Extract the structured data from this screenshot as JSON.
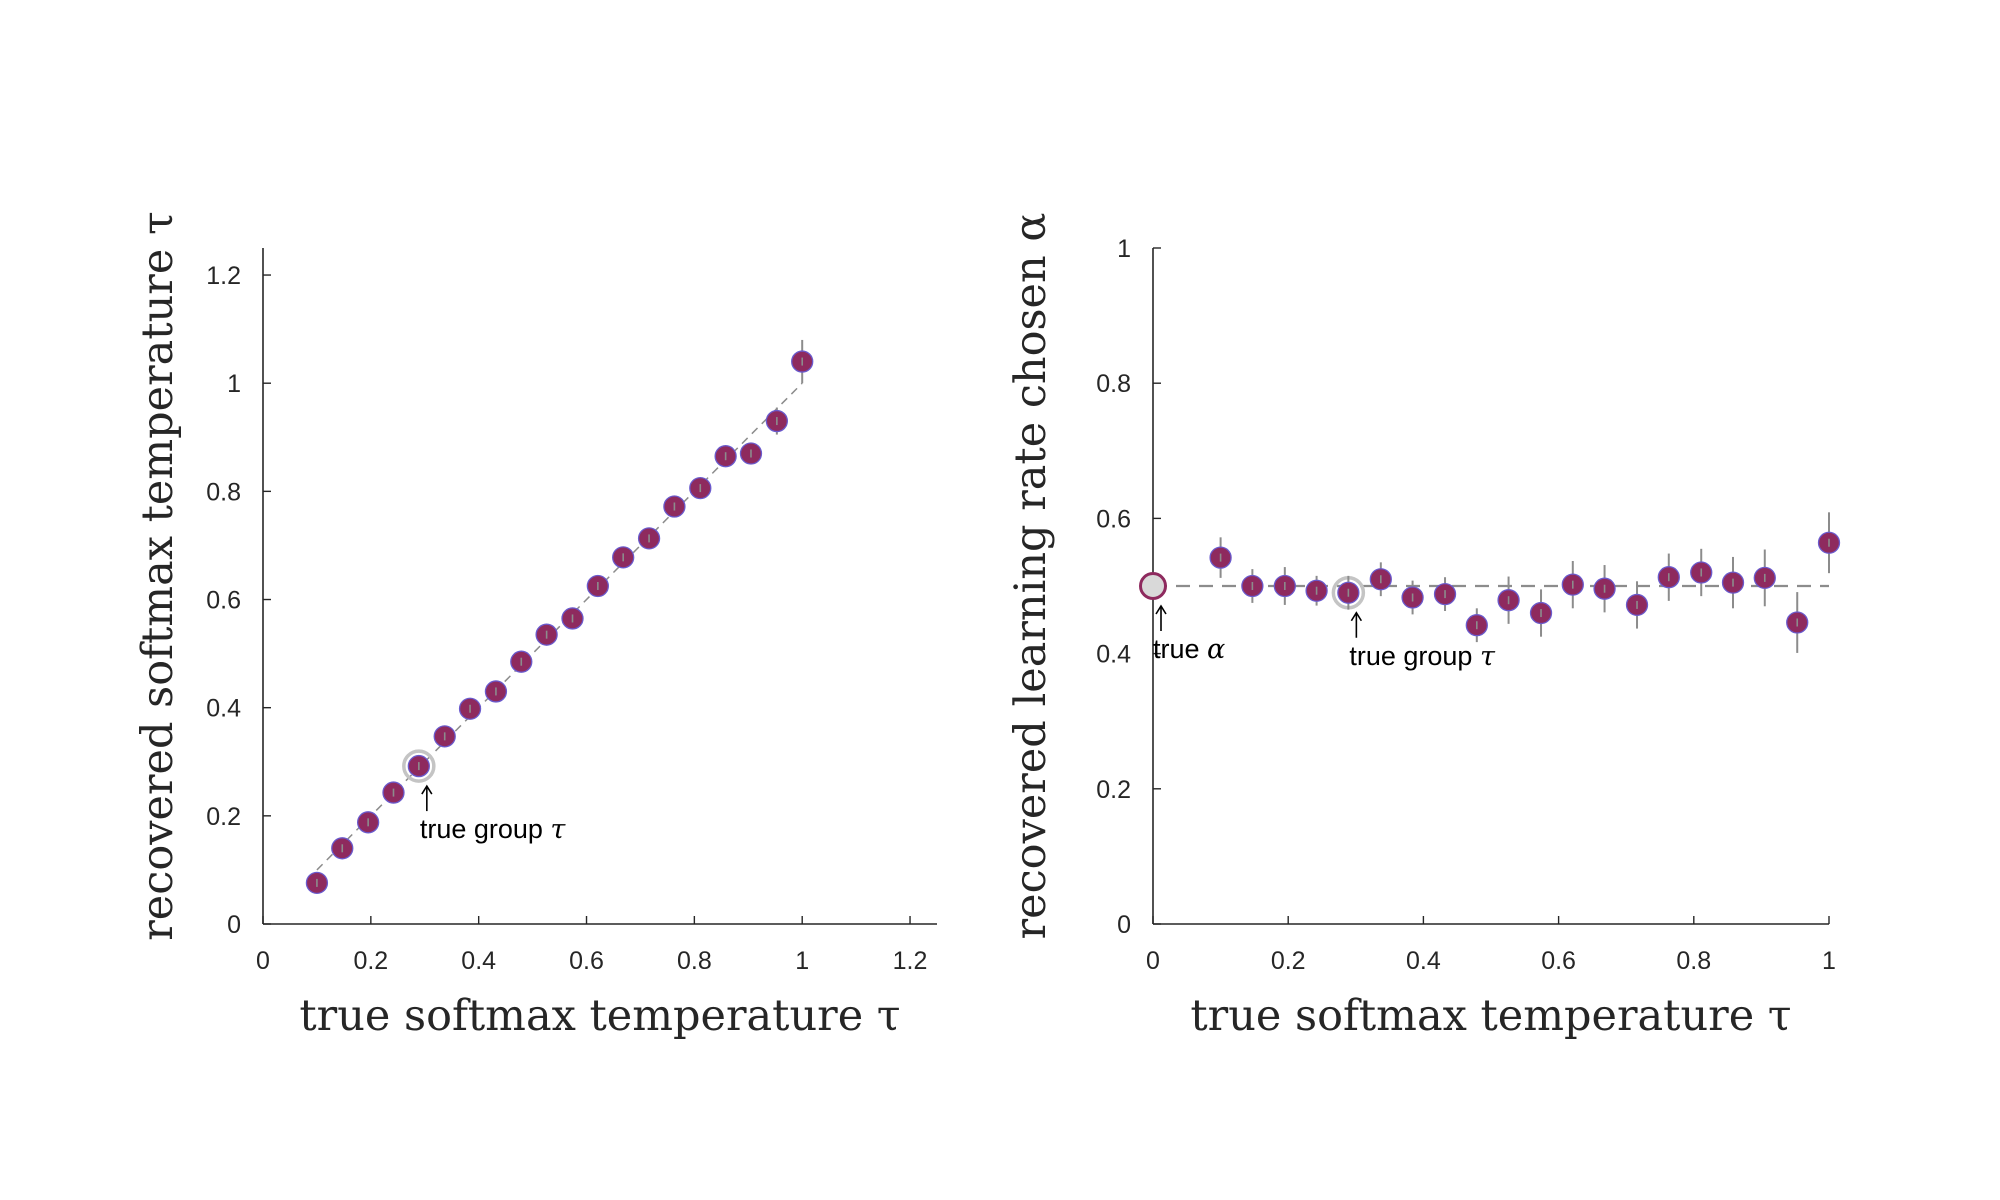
{
  "colors": {
    "marker_fill": "#8e2a5e",
    "marker_edge": "#6a5acd",
    "errorbar": "#8c8c8c",
    "reference_line": "#8c8c8c",
    "highlight_ring": "#c4c4c4",
    "true_alpha_fill": "#d9d9d9",
    "true_alpha_edge": "#8e2a5e",
    "axis": "#262626"
  },
  "chart_data": [
    {
      "type": "scatter",
      "xlabel": "true softmax temperature τ",
      "ylabel": "recovered softmax temperature τ",
      "xlim": [
        0,
        1.25
      ],
      "ylim": [
        0,
        1.25
      ],
      "xticks": [
        0,
        0.2,
        0.4,
        0.6,
        0.8,
        1,
        1.2
      ],
      "xtick_labels": [
        "0",
        "0.2",
        "0.4",
        "0.6",
        "0.8",
        "1",
        "1.2"
      ],
      "yticks": [
        0,
        0.2,
        0.4,
        0.6,
        0.8,
        1,
        1.2
      ],
      "ytick_labels": [
        "0",
        "0.2",
        "0.4",
        "0.6",
        "0.8",
        "1",
        "1.2"
      ],
      "grid": false,
      "reference_line": {
        "style": "dashed",
        "from": [
          0.1,
          0.1
        ],
        "to": [
          1.0,
          1.0
        ]
      },
      "series": [
        {
          "x": [
            0.1,
            0.147,
            0.195,
            0.242,
            0.289,
            0.337,
            0.384,
            0.432,
            0.479,
            0.526,
            0.574,
            0.621,
            0.668,
            0.716,
            0.763,
            0.811,
            0.858,
            0.905,
            0.953,
            1.0
          ],
          "y": [
            0.076,
            0.14,
            0.188,
            0.243,
            0.292,
            0.347,
            0.398,
            0.43,
            0.485,
            0.535,
            0.565,
            0.625,
            0.678,
            0.713,
            0.772,
            0.806,
            0.865,
            0.87,
            0.93,
            1.04
          ],
          "err": [
            0.01,
            0.01,
            0.01,
            0.01,
            0.012,
            0.012,
            0.012,
            0.012,
            0.012,
            0.015,
            0.015,
            0.015,
            0.015,
            0.015,
            0.018,
            0.018,
            0.02,
            0.02,
            0.025,
            0.04
          ]
        }
      ],
      "highlight": {
        "x": 0.289,
        "y": 0.292
      },
      "annotations": [
        {
          "text": "true group ",
          "symbol": "τ",
          "x": 0.289,
          "y": 0.292
        }
      ]
    },
    {
      "type": "scatter",
      "xlabel": "true softmax temperature τ",
      "ylabel": "recovered learning rate chosen α",
      "xlim": [
        0,
        1
      ],
      "ylim": [
        0,
        1
      ],
      "xticks": [
        0,
        0.2,
        0.4,
        0.6,
        0.8,
        1
      ],
      "xtick_labels": [
        "0",
        "0.2",
        "0.4",
        "0.6",
        "0.8",
        "1"
      ],
      "yticks": [
        0,
        0.2,
        0.4,
        0.6,
        0.8,
        1
      ],
      "ytick_labels": [
        "0",
        "0.2",
        "0.4",
        "0.6",
        "0.8",
        "1"
      ],
      "grid": false,
      "reference_line": {
        "style": "dashed",
        "from": [
          0,
          0.5
        ],
        "to": [
          1.0,
          0.5
        ]
      },
      "series": [
        {
          "x": [
            0.1,
            0.147,
            0.195,
            0.242,
            0.289,
            0.337,
            0.384,
            0.432,
            0.479,
            0.526,
            0.574,
            0.621,
            0.668,
            0.716,
            0.763,
            0.811,
            0.858,
            0.905,
            0.953,
            1.0
          ],
          "y": [
            0.542,
            0.5,
            0.5,
            0.493,
            0.49,
            0.51,
            0.483,
            0.488,
            0.442,
            0.479,
            0.46,
            0.502,
            0.496,
            0.472,
            0.513,
            0.52,
            0.505,
            0.512,
            0.446,
            0.564
          ],
          "err": [
            0.03,
            0.025,
            0.028,
            0.022,
            0.025,
            0.025,
            0.025,
            0.025,
            0.025,
            0.035,
            0.035,
            0.035,
            0.035,
            0.035,
            0.035,
            0.035,
            0.038,
            0.042,
            0.045,
            0.045
          ]
        }
      ],
      "true_alpha": {
        "x": 0,
        "y": 0.5
      },
      "highlight": {
        "x": 0.289,
        "y": 0.49
      },
      "annotations": [
        {
          "text": "true ",
          "symbol": "α",
          "x": 0,
          "y": 0.5
        },
        {
          "text": "true group ",
          "symbol": "τ",
          "x": 0.289,
          "y": 0.49
        }
      ]
    }
  ]
}
